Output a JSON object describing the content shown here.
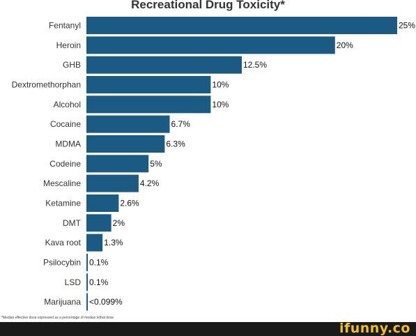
{
  "chart_data": {
    "type": "bar",
    "orientation": "horizontal",
    "title": "Recreational Drug Toxicity*",
    "categories": [
      "Fentanyl",
      "Heroin",
      "GHB",
      "Dextromethorphan",
      "Alcohol",
      "Cocaine",
      "MDMA",
      "Codeine",
      "Mescaline",
      "Ketamine",
      "DMT",
      "Kava root",
      "Psilocybin",
      "LSD",
      "Marijuana"
    ],
    "values": [
      25,
      20,
      12.5,
      10,
      10,
      6.7,
      6.3,
      5,
      4.2,
      2.6,
      2,
      1.3,
      0.1,
      0.1,
      0.099
    ],
    "value_labels": [
      "25%",
      "20%",
      "12.5%",
      "10%",
      "10%",
      "6.7%",
      "6.3%",
      "5%",
      "4.2%",
      "2.6%",
      "2%",
      "1.3%",
      "0.1%",
      "0.1%",
      "<0.099%"
    ],
    "xlim": [
      0,
      25
    ],
    "grid": false,
    "bar_color": "#1b5a82",
    "footnote": "*Median effective dose expressed as a percentage of median lethal dose"
  },
  "watermark": {
    "text": "ifunny.co",
    "color": "#f2c01c"
  }
}
